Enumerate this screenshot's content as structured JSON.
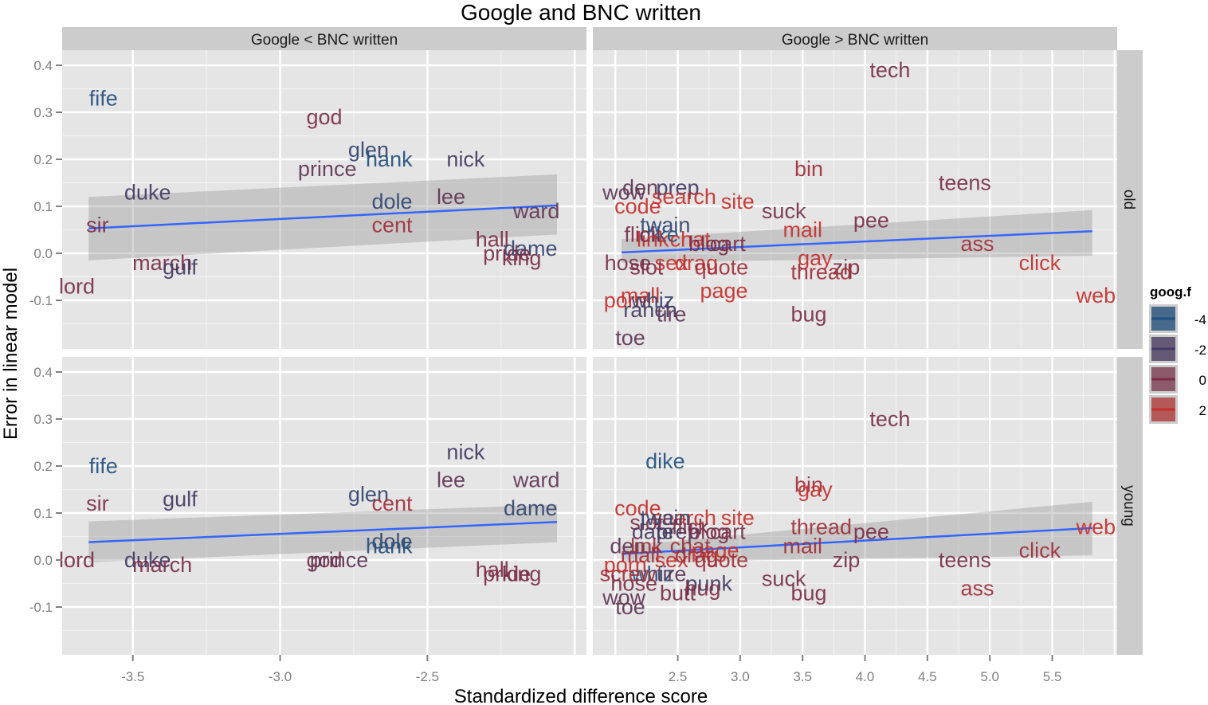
{
  "chart_data": {
    "type": "scatter",
    "title": "Google and BNC written",
    "xlabel": "Standardized difference score",
    "ylabel": "Error in linear model",
    "grid": true,
    "legend_position": "right",
    "legend": {
      "title": "goog.f",
      "entries": [
        {
          "label": "-4",
          "color": "#23507f"
        },
        {
          "label": "-2",
          "color": "#433a63"
        },
        {
          "label": "0",
          "color": "#7a2f48"
        },
        {
          "label": "2",
          "color": "#c5302c"
        }
      ]
    },
    "facet_cols": [
      "Google < BNC written",
      "Google > BNC written"
    ],
    "facet_rows": [
      "old",
      "young"
    ],
    "y_ticks": [
      "0.4",
      "0.3",
      "0.2",
      "0.1",
      "0.0",
      "-0.1"
    ],
    "y_range": [
      -0.2,
      0.43
    ],
    "x_ticks_left": [
      "-3.5",
      "-3.0",
      "-2.5"
    ],
    "x_range_left": [
      -3.74,
      -1.96
    ],
    "x_ticks_right": [
      "2.5",
      "3.0",
      "3.5",
      "4.0",
      "4.5",
      "5.0",
      "5.5"
    ],
    "x_range_right": [
      1.82,
      6.02
    ],
    "smoother": {
      "method": "lm",
      "color": "#3366ff",
      "band_color": "#999999"
    },
    "panels": [
      {
        "col": "Google < BNC written",
        "row": "old",
        "fit": {
          "x": [
            -3.65,
            -2.06
          ],
          "y": [
            0.053,
            0.102
          ],
          "band_lo": [
            -0.015,
            0.04
          ],
          "band_hi": [
            0.12,
            0.168
          ]
        },
        "points": [
          {
            "label": "fife",
            "x": -3.6,
            "y": 0.33,
            "goog": -4
          },
          {
            "label": "god",
            "x": -2.85,
            "y": 0.29,
            "goog": 0
          },
          {
            "label": "glen",
            "x": -2.7,
            "y": 0.22,
            "goog": -3
          },
          {
            "label": "prince",
            "x": -2.84,
            "y": 0.18,
            "goog": -1
          },
          {
            "label": "hank",
            "x": -2.63,
            "y": 0.2,
            "goog": -4
          },
          {
            "label": "nick",
            "x": -2.37,
            "y": 0.2,
            "goog": -2
          },
          {
            "label": "duke",
            "x": -3.45,
            "y": 0.13,
            "goog": -2
          },
          {
            "label": "dole",
            "x": -2.62,
            "y": 0.11,
            "goog": -3
          },
          {
            "label": "lee",
            "x": -2.42,
            "y": 0.12,
            "goog": -1
          },
          {
            "label": "ward",
            "x": -2.13,
            "y": 0.09,
            "goog": -1
          },
          {
            "label": "sir",
            "x": -3.62,
            "y": 0.06,
            "goog": 0
          },
          {
            "label": "cent",
            "x": -2.62,
            "y": 0.06,
            "goog": 1
          },
          {
            "label": "hall",
            "x": -2.28,
            "y": 0.03,
            "goog": 0
          },
          {
            "label": "dame",
            "x": -2.15,
            "y": 0.01,
            "goog": -3
          },
          {
            "label": "pride",
            "x": -2.23,
            "y": 0.0,
            "goog": 0
          },
          {
            "label": "king",
            "x": -2.18,
            "y": -0.01,
            "goog": 0
          },
          {
            "label": "march",
            "x": -3.4,
            "y": -0.02,
            "goog": 0
          },
          {
            "label": "gulf",
            "x": -3.34,
            "y": -0.03,
            "goog": -2
          },
          {
            "label": "lord",
            "x": -3.69,
            "y": -0.07,
            "goog": 0
          }
        ]
      },
      {
        "col": "Google > BNC written",
        "row": "old",
        "fit": {
          "x": [
            2.05,
            5.82
          ],
          "y": [
            0.002,
            0.047
          ],
          "band_lo": [
            -0.02,
            -0.005
          ],
          "band_hi": [
            0.03,
            0.092
          ]
        },
        "points": [
          {
            "label": "tech",
            "x": 4.2,
            "y": 0.39,
            "goog": 0
          },
          {
            "label": "bin",
            "x": 3.55,
            "y": 0.18,
            "goog": 1
          },
          {
            "label": "teens",
            "x": 4.8,
            "y": 0.15,
            "goog": 0
          },
          {
            "label": "den",
            "x": 2.2,
            "y": 0.14,
            "goog": -1
          },
          {
            "label": "prep",
            "x": 2.5,
            "y": 0.14,
            "goog": -2
          },
          {
            "label": "wow",
            "x": 2.07,
            "y": 0.13,
            "goog": -1
          },
          {
            "label": "search",
            "x": 2.55,
            "y": 0.12,
            "goog": 2
          },
          {
            "label": "site",
            "x": 2.98,
            "y": 0.11,
            "goog": 2
          },
          {
            "label": "code",
            "x": 2.18,
            "y": 0.1,
            "goog": 2
          },
          {
            "label": "suck",
            "x": 3.35,
            "y": 0.09,
            "goog": 0
          },
          {
            "label": "twain",
            "x": 2.4,
            "y": 0.06,
            "goog": -3
          },
          {
            "label": "pee",
            "x": 4.05,
            "y": 0.07,
            "goog": 0
          },
          {
            "label": "mail",
            "x": 3.5,
            "y": 0.05,
            "goog": 2
          },
          {
            "label": "dike",
            "x": 2.35,
            "y": 0.04,
            "goog": -4
          },
          {
            "label": "flick",
            "x": 2.22,
            "y": 0.04,
            "goog": 0
          },
          {
            "label": "link",
            "x": 2.3,
            "y": 0.03,
            "goog": 2
          },
          {
            "label": "chat",
            "x": 2.6,
            "y": 0.03,
            "goog": 2
          },
          {
            "label": "blog",
            "x": 2.75,
            "y": 0.02,
            "goog": 0
          },
          {
            "label": "cart",
            "x": 2.9,
            "y": 0.02,
            "goog": 0
          },
          {
            "label": "ass",
            "x": 4.9,
            "y": 0.02,
            "goog": 1
          },
          {
            "label": "gay",
            "x": 3.6,
            "y": -0.01,
            "goog": 2
          },
          {
            "label": "zip",
            "x": 3.85,
            "y": -0.03,
            "goog": 0
          },
          {
            "label": "thread",
            "x": 3.65,
            "y": -0.04,
            "goog": 1
          },
          {
            "label": "click",
            "x": 5.4,
            "y": -0.02,
            "goog": 2
          },
          {
            "label": "hose",
            "x": 2.1,
            "y": -0.02,
            "goog": 0
          },
          {
            "label": "slot",
            "x": 2.25,
            "y": -0.03,
            "goog": 0
          },
          {
            "label": "sex",
            "x": 2.45,
            "y": -0.02,
            "goog": 2
          },
          {
            "label": "drag",
            "x": 2.65,
            "y": -0.02,
            "goog": 2
          },
          {
            "label": "quote",
            "x": 2.85,
            "y": -0.03,
            "goog": 1
          },
          {
            "label": "page",
            "x": 2.87,
            "y": -0.08,
            "goog": 2
          },
          {
            "label": "web",
            "x": 5.85,
            "y": -0.09,
            "goog": 2
          },
          {
            "label": "mall",
            "x": 2.2,
            "y": -0.09,
            "goog": 2
          },
          {
            "label": "porn",
            "x": 2.08,
            "y": -0.1,
            "goog": 2
          },
          {
            "label": "whiz",
            "x": 2.3,
            "y": -0.1,
            "goog": -3
          },
          {
            "label": "ranch",
            "x": 2.28,
            "y": -0.12,
            "goog": -2
          },
          {
            "label": "tire",
            "x": 2.45,
            "y": -0.13,
            "goog": -1
          },
          {
            "label": "bug",
            "x": 3.55,
            "y": -0.13,
            "goog": 0
          },
          {
            "label": "toe",
            "x": 2.12,
            "y": -0.18,
            "goog": -1
          }
        ]
      },
      {
        "col": "Google < BNC written",
        "row": "young",
        "fit": {
          "x": [
            -3.65,
            -2.06
          ],
          "y": [
            0.038,
            0.081
          ],
          "band_lo": [
            -0.005,
            0.038
          ],
          "band_hi": [
            0.082,
            0.118
          ]
        },
        "points": [
          {
            "label": "fife",
            "x": -3.6,
            "y": 0.2,
            "goog": -4
          },
          {
            "label": "nick",
            "x": -2.37,
            "y": 0.23,
            "goog": -2
          },
          {
            "label": "lee",
            "x": -2.42,
            "y": 0.17,
            "goog": -1
          },
          {
            "label": "ward",
            "x": -2.13,
            "y": 0.17,
            "goog": -1
          },
          {
            "label": "sir",
            "x": -3.62,
            "y": 0.12,
            "goog": 0
          },
          {
            "label": "gulf",
            "x": -3.34,
            "y": 0.13,
            "goog": -2
          },
          {
            "label": "glen",
            "x": -2.7,
            "y": 0.14,
            "goog": -3
          },
          {
            "label": "cent",
            "x": -2.62,
            "y": 0.12,
            "goog": 1
          },
          {
            "label": "dame",
            "x": -2.15,
            "y": 0.11,
            "goog": -3
          },
          {
            "label": "dole",
            "x": -2.62,
            "y": 0.04,
            "goog": -3
          },
          {
            "label": "hank",
            "x": -2.63,
            "y": 0.03,
            "goog": -4
          },
          {
            "label": "lord",
            "x": -3.69,
            "y": 0.0,
            "goog": 0
          },
          {
            "label": "duke",
            "x": -3.45,
            "y": 0.0,
            "goog": -2
          },
          {
            "label": "march",
            "x": -3.4,
            "y": -0.01,
            "goog": 0
          },
          {
            "label": "god",
            "x": -2.85,
            "y": 0.0,
            "goog": 0
          },
          {
            "label": "prince",
            "x": -2.8,
            "y": 0.0,
            "goog": -1
          },
          {
            "label": "hall",
            "x": -2.28,
            "y": -0.02,
            "goog": 0
          },
          {
            "label": "pride",
            "x": -2.23,
            "y": -0.03,
            "goog": 0
          },
          {
            "label": "king",
            "x": -2.18,
            "y": -0.03,
            "goog": 0
          }
        ]
      },
      {
        "col": "Google > BNC written",
        "row": "young",
        "fit": {
          "x": [
            2.05,
            5.82
          ],
          "y": [
            0.013,
            0.068
          ],
          "band_lo": [
            -0.005,
            0.01
          ],
          "band_hi": [
            0.03,
            0.124
          ]
        },
        "points": [
          {
            "label": "tech",
            "x": 4.2,
            "y": 0.3,
            "goog": 0
          },
          {
            "label": "dike",
            "x": 2.4,
            "y": 0.21,
            "goog": -4
          },
          {
            "label": "bin",
            "x": 3.55,
            "y": 0.16,
            "goog": 1
          },
          {
            "label": "gay",
            "x": 3.6,
            "y": 0.15,
            "goog": 2
          },
          {
            "label": "code",
            "x": 2.18,
            "y": 0.11,
            "goog": 2
          },
          {
            "label": "search",
            "x": 2.55,
            "y": 0.09,
            "goog": 2
          },
          {
            "label": "site",
            "x": 2.98,
            "y": 0.09,
            "goog": 2
          },
          {
            "label": "thread",
            "x": 3.65,
            "y": 0.07,
            "goog": 1
          },
          {
            "label": "pee",
            "x": 4.05,
            "y": 0.06,
            "goog": 0
          },
          {
            "label": "web",
            "x": 5.85,
            "y": 0.07,
            "goog": 2
          },
          {
            "label": "slot",
            "x": 2.25,
            "y": 0.08,
            "goog": 0
          },
          {
            "label": "twain",
            "x": 2.4,
            "y": 0.09,
            "goog": -3
          },
          {
            "label": "date",
            "x": 2.3,
            "y": 0.06,
            "goog": -2
          },
          {
            "label": "prep",
            "x": 2.5,
            "y": 0.06,
            "goog": -2
          },
          {
            "label": "flick",
            "x": 2.6,
            "y": 0.07,
            "goog": 0
          },
          {
            "label": "blog",
            "x": 2.75,
            "y": 0.06,
            "goog": 0
          },
          {
            "label": "cart",
            "x": 2.9,
            "y": 0.06,
            "goog": 0
          },
          {
            "label": "den",
            "x": 2.1,
            "y": 0.03,
            "goog": -1
          },
          {
            "label": "link",
            "x": 2.25,
            "y": 0.03,
            "goog": 1
          },
          {
            "label": "chat",
            "x": 2.6,
            "y": 0.03,
            "goog": 1
          },
          {
            "label": "page",
            "x": 2.8,
            "y": 0.02,
            "goog": 2
          },
          {
            "label": "mail",
            "x": 3.5,
            "y": 0.03,
            "goog": 1
          },
          {
            "label": "click",
            "x": 5.4,
            "y": 0.02,
            "goog": 1
          },
          {
            "label": "mall",
            "x": 2.2,
            "y": 0.01,
            "goog": 1
          },
          {
            "label": "sex",
            "x": 2.45,
            "y": 0.0,
            "goog": 2
          },
          {
            "label": "drag",
            "x": 2.65,
            "y": 0.01,
            "goog": 1
          },
          {
            "label": "quote",
            "x": 2.85,
            "y": 0.0,
            "goog": 1
          },
          {
            "label": "teens",
            "x": 4.8,
            "y": 0.0,
            "goog": 0
          },
          {
            "label": "zip",
            "x": 3.85,
            "y": 0.0,
            "goog": 0
          },
          {
            "label": "porn",
            "x": 2.08,
            "y": -0.01,
            "goog": 2
          },
          {
            "label": "whiz",
            "x": 2.3,
            "y": -0.03,
            "goog": -4
          },
          {
            "label": "screw",
            "x": 2.1,
            "y": -0.03,
            "goog": 1
          },
          {
            "label": "tire",
            "x": 2.45,
            "y": -0.03,
            "goog": -1
          },
          {
            "label": "hose",
            "x": 2.15,
            "y": -0.05,
            "goog": 0
          },
          {
            "label": "punk",
            "x": 2.75,
            "y": -0.05,
            "goog": -2
          },
          {
            "label": "hug",
            "x": 2.7,
            "y": -0.06,
            "goog": 0
          },
          {
            "label": "suck",
            "x": 3.35,
            "y": -0.04,
            "goog": 0
          },
          {
            "label": "bug",
            "x": 3.55,
            "y": -0.07,
            "goog": 0
          },
          {
            "label": "ass",
            "x": 4.9,
            "y": -0.06,
            "goog": 1
          },
          {
            "label": "wow",
            "x": 2.07,
            "y": -0.08,
            "goog": -1
          },
          {
            "label": "butt",
            "x": 2.5,
            "y": -0.07,
            "goog": 0
          },
          {
            "label": "toe",
            "x": 2.12,
            "y": -0.1,
            "goog": -1
          }
        ]
      }
    ]
  }
}
